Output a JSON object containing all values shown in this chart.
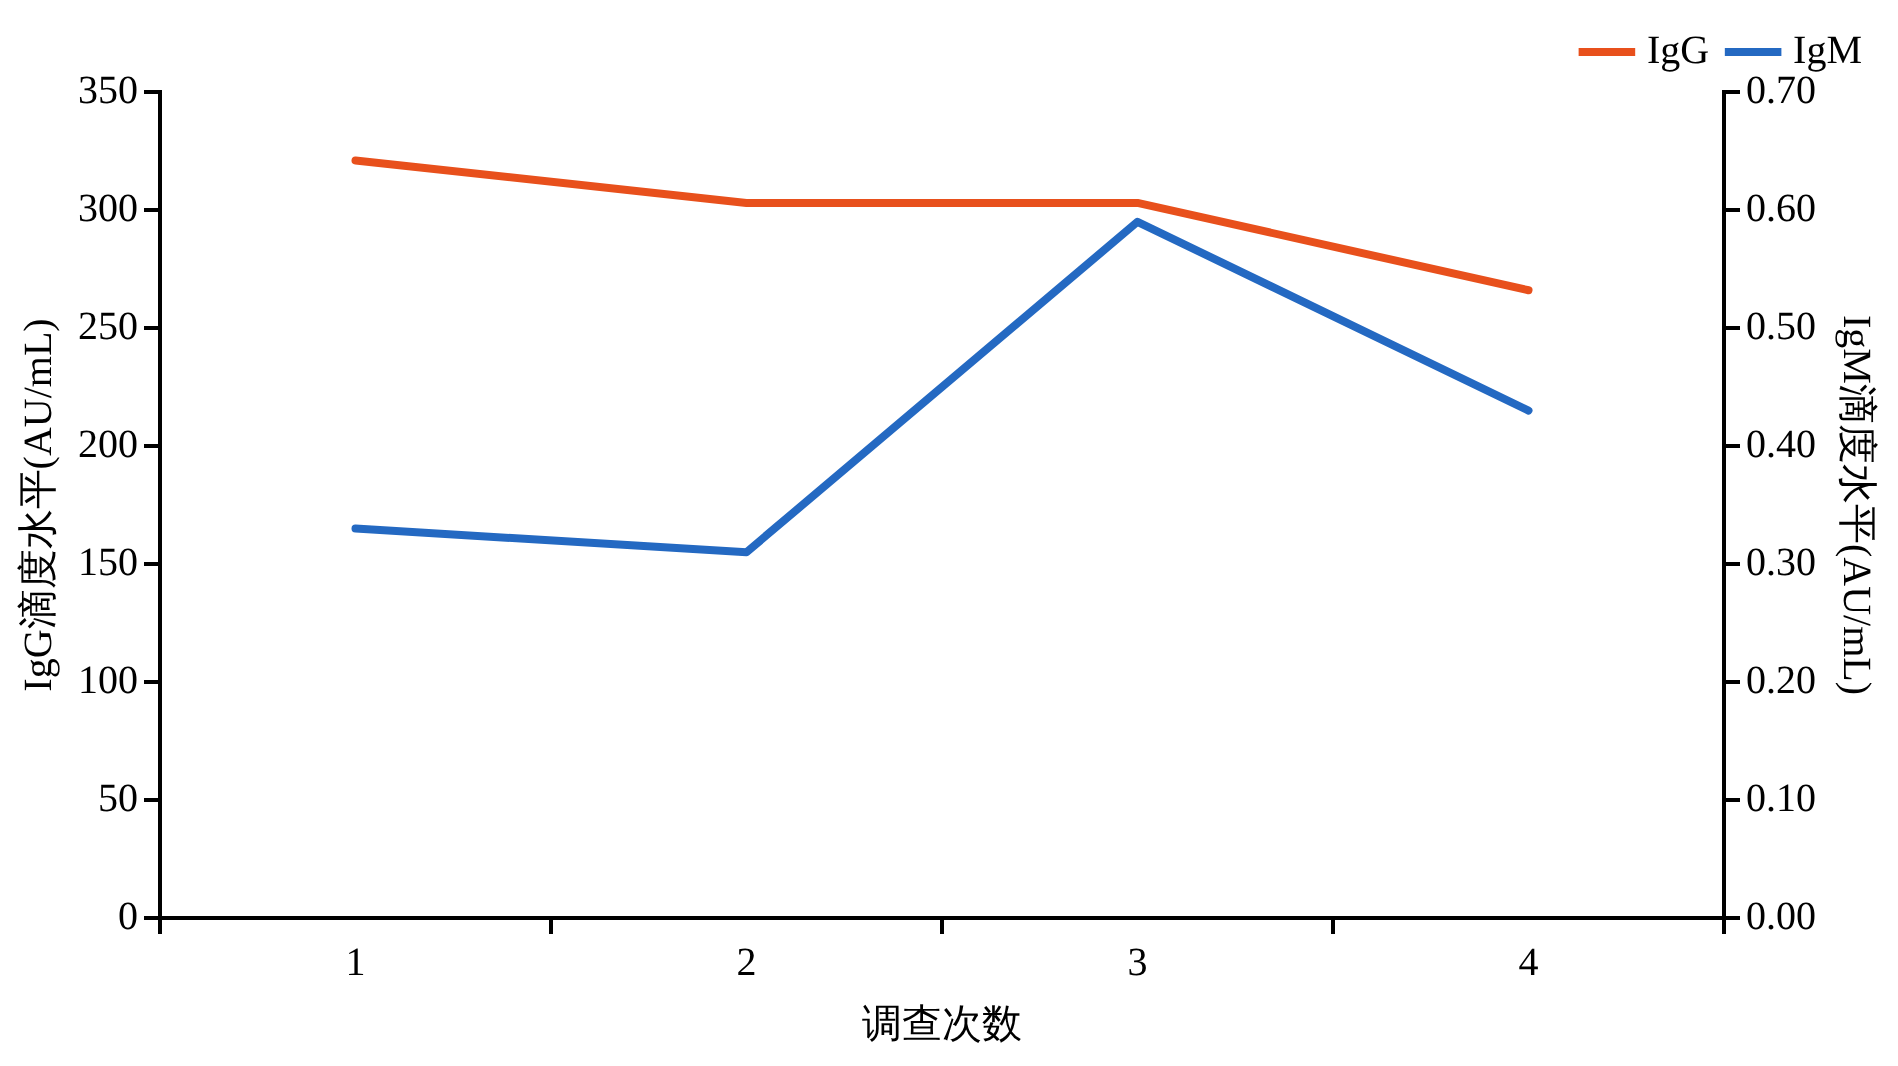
{
  "chart_data": {
    "type": "line",
    "xlabel": "调查次数",
    "ylabel": "IgG滴度水平(AU/mL)",
    "y2label": "IgM滴度水平(AU/mL)",
    "categories": [
      "1",
      "2",
      "3",
      "4"
    ],
    "series": [
      {
        "name": "IgG",
        "color": "#e8501c",
        "values": [
          321,
          303,
          303,
          266
        ]
      },
      {
        "name": "IgM",
        "color": "#2469c2",
        "values": [
          0.33,
          0.31,
          0.59,
          0.43
        ],
        "axis": "y2"
      }
    ],
    "ylim": [
      0,
      350
    ],
    "yticks": [
      0,
      50,
      100,
      150,
      200,
      250,
      300,
      350
    ],
    "y2lim": [
      0,
      0.7
    ],
    "y2ticks": [
      {
        "value": 0,
        "label": "0.00"
      },
      {
        "value": 0.1,
        "label": "0.10"
      },
      {
        "value": 0.2,
        "label": "0.20"
      },
      {
        "value": 0.3,
        "label": "0.30"
      },
      {
        "value": 0.4,
        "label": "0.40"
      },
      {
        "value": 0.5,
        "label": "0.50"
      },
      {
        "value": 0.6,
        "label": "0.60"
      },
      {
        "value": 0.7,
        "label": "0.70"
      }
    ],
    "grid": false,
    "legend": "top right",
    "marker": "none",
    "line_style": "solid"
  }
}
